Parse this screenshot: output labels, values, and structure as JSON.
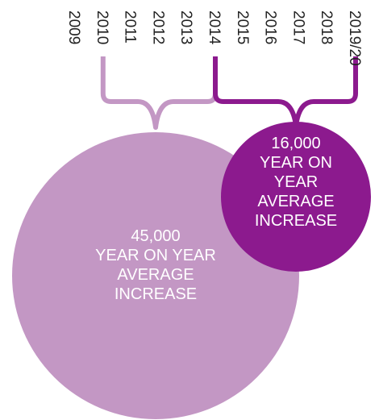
{
  "chart_data": {
    "type": "bubble",
    "title": "",
    "years": [
      "2009",
      "2010",
      "2011",
      "2012",
      "2013",
      "2014",
      "2015",
      "2016",
      "2017",
      "2018",
      "2019/20"
    ],
    "periods": [
      {
        "name": "2010-2014",
        "start_year": "2010",
        "end_year": "2014",
        "value": 45000,
        "value_label": "45,000",
        "caption_lines": [
          "YEAR ON YEAR",
          "AVERAGE",
          "INCREASE"
        ],
        "color": "#c397c4"
      },
      {
        "name": "2014-2019/20",
        "start_year": "2014",
        "end_year": "2019/20",
        "value": 16000,
        "value_label": "16,000",
        "caption_lines": [
          "YEAR ON",
          "YEAR",
          "AVERAGE",
          "INCREASE"
        ],
        "color": "#8c1a8e"
      }
    ]
  }
}
